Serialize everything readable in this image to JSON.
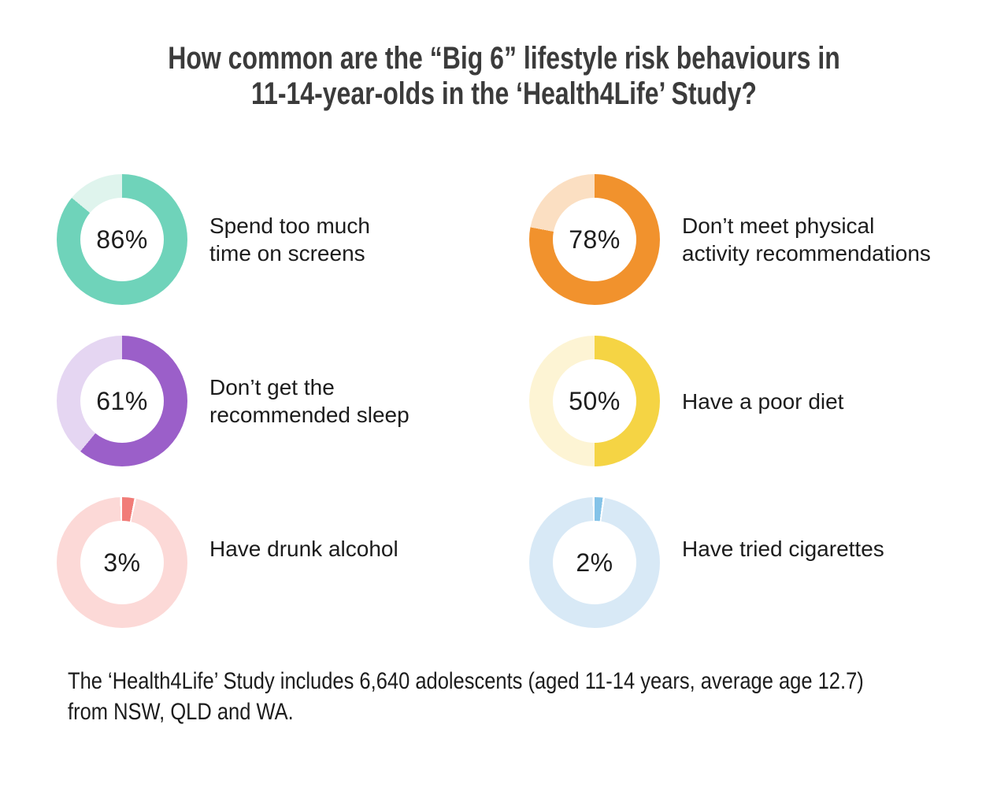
{
  "page": {
    "background": "#ffffff"
  },
  "header": {
    "title": "How common are the “Big 6” lifestyle risk behaviours in\n11-14-year-olds in the ‘Health4Life’ Study?"
  },
  "chart_data": {
    "type": "pie",
    "subtype": "donut-grid",
    "title": "How common are the “Big 6” lifestyle risk behaviours in 11-14-year-olds in the ‘Health4Life’ Study?",
    "unit": "%",
    "legend_position": "none",
    "items": [
      {
        "label": "Spend too much\ntime on screens",
        "value": 86,
        "value_label": "86%",
        "color": "#6fd3ba",
        "color_light": "#dff4ed"
      },
      {
        "label": "Don’t meet physical\nactivity recommendations",
        "value": 78,
        "value_label": "78%",
        "color": "#f1922d",
        "color_light": "#fbdfc2"
      },
      {
        "label": "Don’t get the\nrecommended sleep",
        "value": 61,
        "value_label": "61%",
        "color": "#9b5fc9",
        "color_light": "#e5d6f2"
      },
      {
        "label": "Have a poor diet",
        "value": 50,
        "value_label": "50%",
        "color": "#f5d444",
        "color_light": "#fdf4d4"
      },
      {
        "label": "Have drunk alcohol",
        "value": 3,
        "value_label": "3%",
        "color": "#f17c78",
        "color_light": "#fcd9d7"
      },
      {
        "label": "Have tried cigarettes",
        "value": 2,
        "value_label": "2%",
        "color": "#84c3e8",
        "color_light": "#d8e9f6"
      }
    ]
  },
  "footer": {
    "note": "The ‘Health4Life’ Study includes 6,640 adolescents (aged 11-14 years, average age 12.7)\nfrom NSW, QLD and WA."
  }
}
